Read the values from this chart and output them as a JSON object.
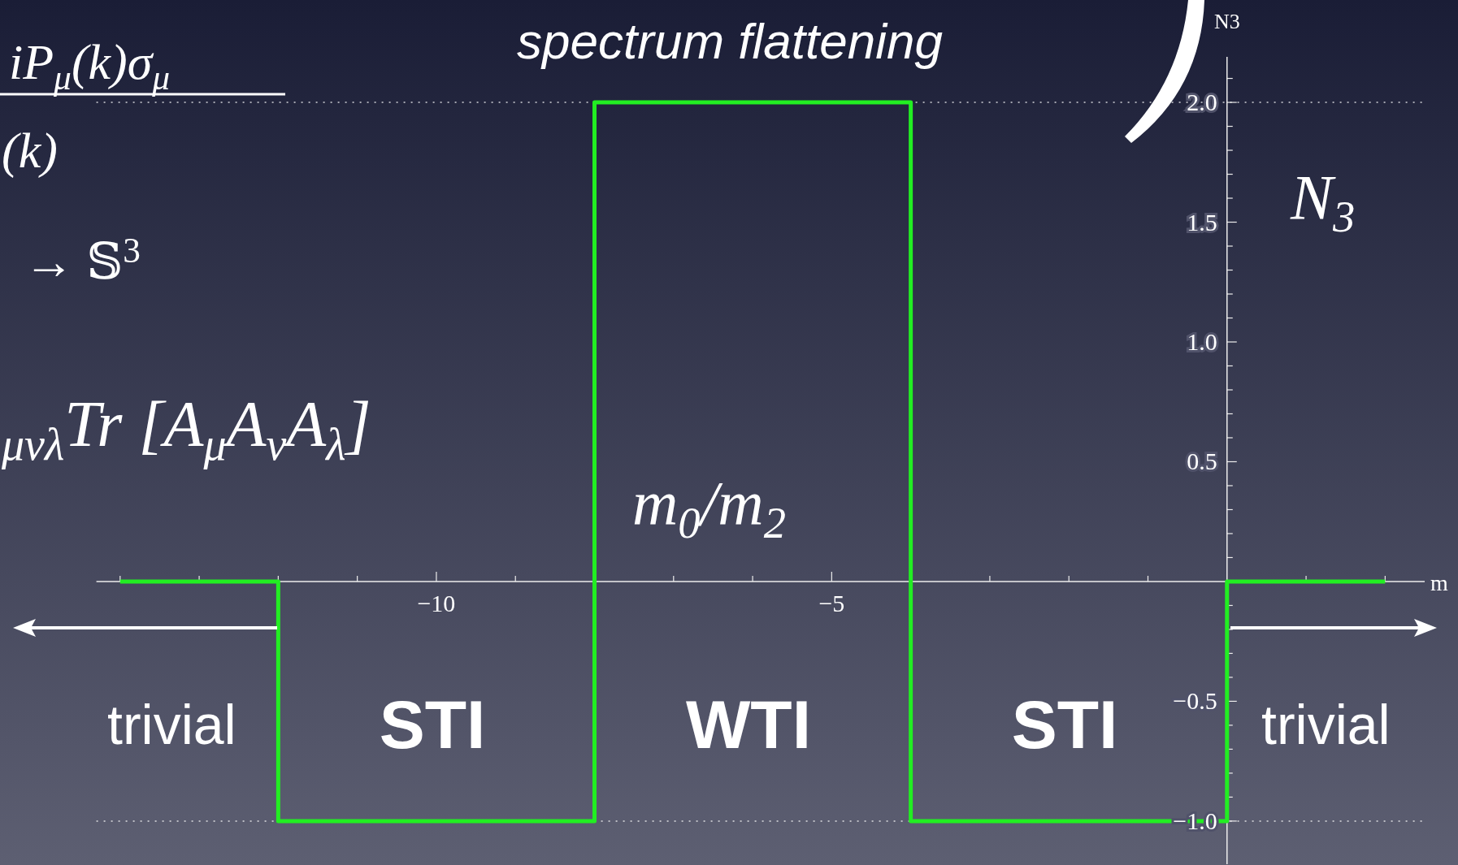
{
  "chart_data": {
    "type": "step",
    "title": "spectrum flattening",
    "xlabel": "m",
    "ylabel": "N3",
    "annotations": [
      "iP$_{μ}$(k)σ$_{μ}$",
      "(k)",
      "→ 𝕊$^{3}$",
      "$_{μνλ}$Tr [A$_{μ}$A$_{ν}$A$_{λ}$]",
      "N$_{3}$",
      "m$_{0}$/m$_{2}$",
      "trivial",
      "STI",
      "WTI",
      "STI",
      "trivial"
    ],
    "series": [
      {
        "color": "#22ee22",
        "x": [
          -14,
          -12,
          -8,
          -4,
          0,
          2
        ],
        "values": [
          0,
          -1,
          2,
          -1,
          0,
          0
        ]
      }
    ],
    "xlim": [
      -14.3,
      2.5
    ],
    "ylim": [
      -1.18,
      2.19
    ],
    "xticks": [
      {
        "value": -14,
        "label": null
      },
      {
        "value": -13,
        "label": null
      },
      {
        "value": -12,
        "label": null
      },
      {
        "value": -11,
        "label": null
      },
      {
        "value": -10,
        "label": "−10"
      },
      {
        "value": -9,
        "label": null
      },
      {
        "value": -8,
        "label": null
      },
      {
        "value": -7,
        "label": null
      },
      {
        "value": -6,
        "label": null
      },
      {
        "value": -5,
        "label": "−5"
      },
      {
        "value": -4,
        "label": null
      },
      {
        "value": -3,
        "label": null
      },
      {
        "value": -2,
        "label": null
      },
      {
        "value": -1,
        "label": null
      },
      {
        "value": 1,
        "label": null
      },
      {
        "value": 2,
        "label": null
      }
    ],
    "yticks": [
      {
        "value": -1,
        "label": "−1.0"
      },
      {
        "value": -0.9,
        "label": null
      },
      {
        "value": -0.8,
        "label": null
      },
      {
        "value": -0.7,
        "label": null
      },
      {
        "value": -0.6,
        "label": null
      },
      {
        "value": -0.5,
        "label": "−0.5"
      },
      {
        "value": -0.4,
        "label": null
      },
      {
        "value": -0.3,
        "label": null
      },
      {
        "value": -0.2,
        "label": null
      },
      {
        "value": -0.1,
        "label": null
      },
      {
        "value": 0.1,
        "label": null
      },
      {
        "value": 0.2,
        "label": null
      },
      {
        "value": 0.3,
        "label": null
      },
      {
        "value": 0.4,
        "label": null
      },
      {
        "value": 0.5,
        "label": "0.5"
      },
      {
        "value": 0.6,
        "label": null
      },
      {
        "value": 0.7,
        "label": null
      },
      {
        "value": 0.8,
        "label": null
      },
      {
        "value": 0.9,
        "label": null
      },
      {
        "value": 1,
        "label": "1.0"
      },
      {
        "value": 1.1,
        "label": null
      },
      {
        "value": 1.2,
        "label": null
      },
      {
        "value": 1.3,
        "label": null
      },
      {
        "value": 1.4,
        "label": null
      },
      {
        "value": 1.5,
        "label": "1.5"
      },
      {
        "value": 1.6,
        "label": null
      },
      {
        "value": 1.7,
        "label": null
      },
      {
        "value": 1.8,
        "label": null
      },
      {
        "value": 1.9,
        "label": null
      },
      {
        "value": 2,
        "label": "2.0"
      },
      {
        "value": 2.1,
        "label": null
      }
    ],
    "ref_lines": [
      {
        "axis": "y",
        "value": 2,
        "line_style": "dotted"
      },
      {
        "axis": "y",
        "value": -1,
        "line_style": "dotted"
      }
    ]
  }
}
